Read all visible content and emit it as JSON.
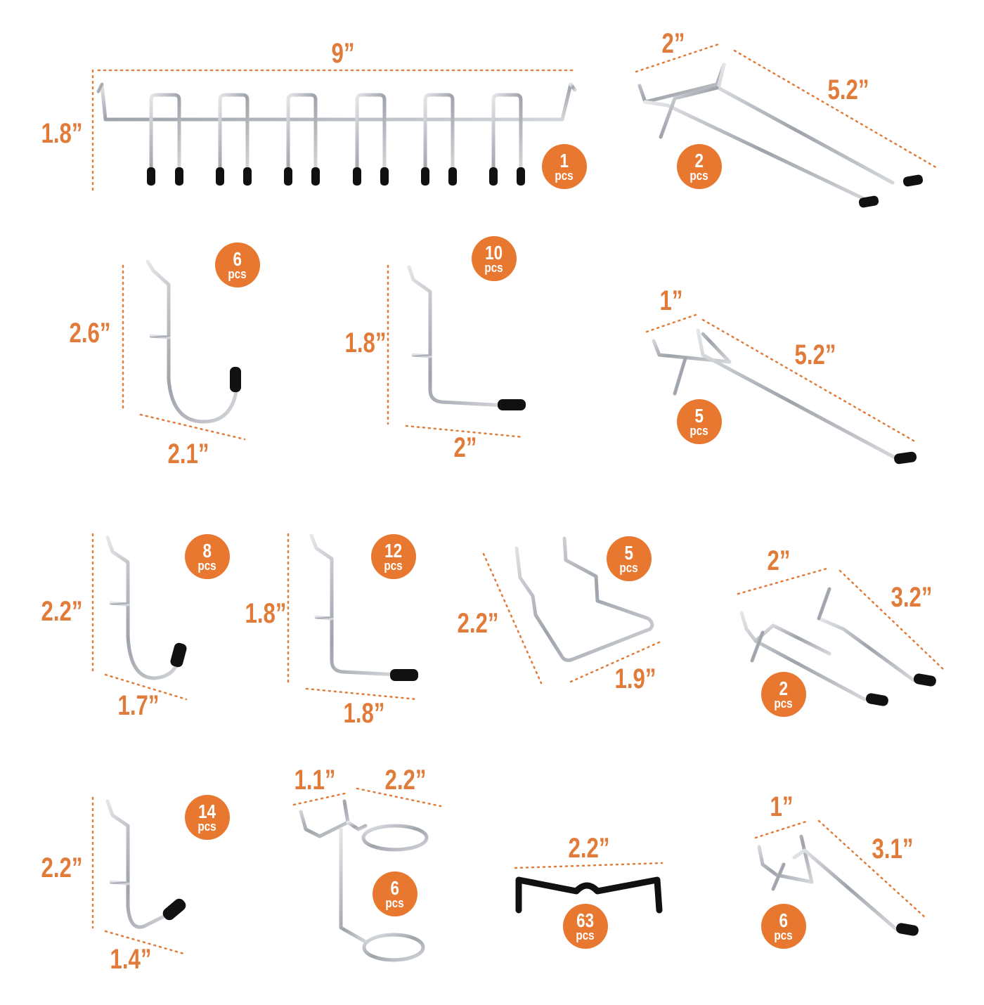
{
  "accent_color": "#e8782f",
  "dimension_color": "#e07b39",
  "metal_color": "#b8bcc2",
  "tip_color": "#111111",
  "items": [
    {
      "qty": "1",
      "unit": "pcs",
      "dims": [
        "9”",
        "1.8”"
      ]
    },
    {
      "qty": "2",
      "unit": "pcs",
      "dims": [
        "2”",
        "5.2”"
      ]
    },
    {
      "qty": "6",
      "unit": "pcs",
      "dims": [
        "2.6”",
        "2.1”"
      ]
    },
    {
      "qty": "10",
      "unit": "pcs",
      "dims": [
        "1.8”",
        "2”"
      ]
    },
    {
      "qty": "5",
      "unit": "pcs",
      "dims": [
        "1”",
        "5.2”"
      ]
    },
    {
      "qty": "8",
      "unit": "pcs",
      "dims": [
        "2.2”",
        "1.7”"
      ]
    },
    {
      "qty": "12",
      "unit": "pcs",
      "dims": [
        "1.8”",
        "1.8”"
      ]
    },
    {
      "qty": "5",
      "unit": "pcs",
      "dims": [
        "2.2”",
        "1.9”"
      ]
    },
    {
      "qty": "2",
      "unit": "pcs",
      "dims": [
        "2”",
        "3.2”"
      ]
    },
    {
      "qty": "14",
      "unit": "pcs",
      "dims": [
        "2.2”",
        "1.4”"
      ]
    },
    {
      "qty": "6",
      "unit": "pcs",
      "dims": [
        "1.1”",
        "2.2”"
      ]
    },
    {
      "qty": "63",
      "unit": "pcs",
      "dims": [
        "2.2”"
      ]
    },
    {
      "qty": "6",
      "unit": "pcs",
      "dims": [
        "1”",
        "3.1”"
      ]
    }
  ]
}
